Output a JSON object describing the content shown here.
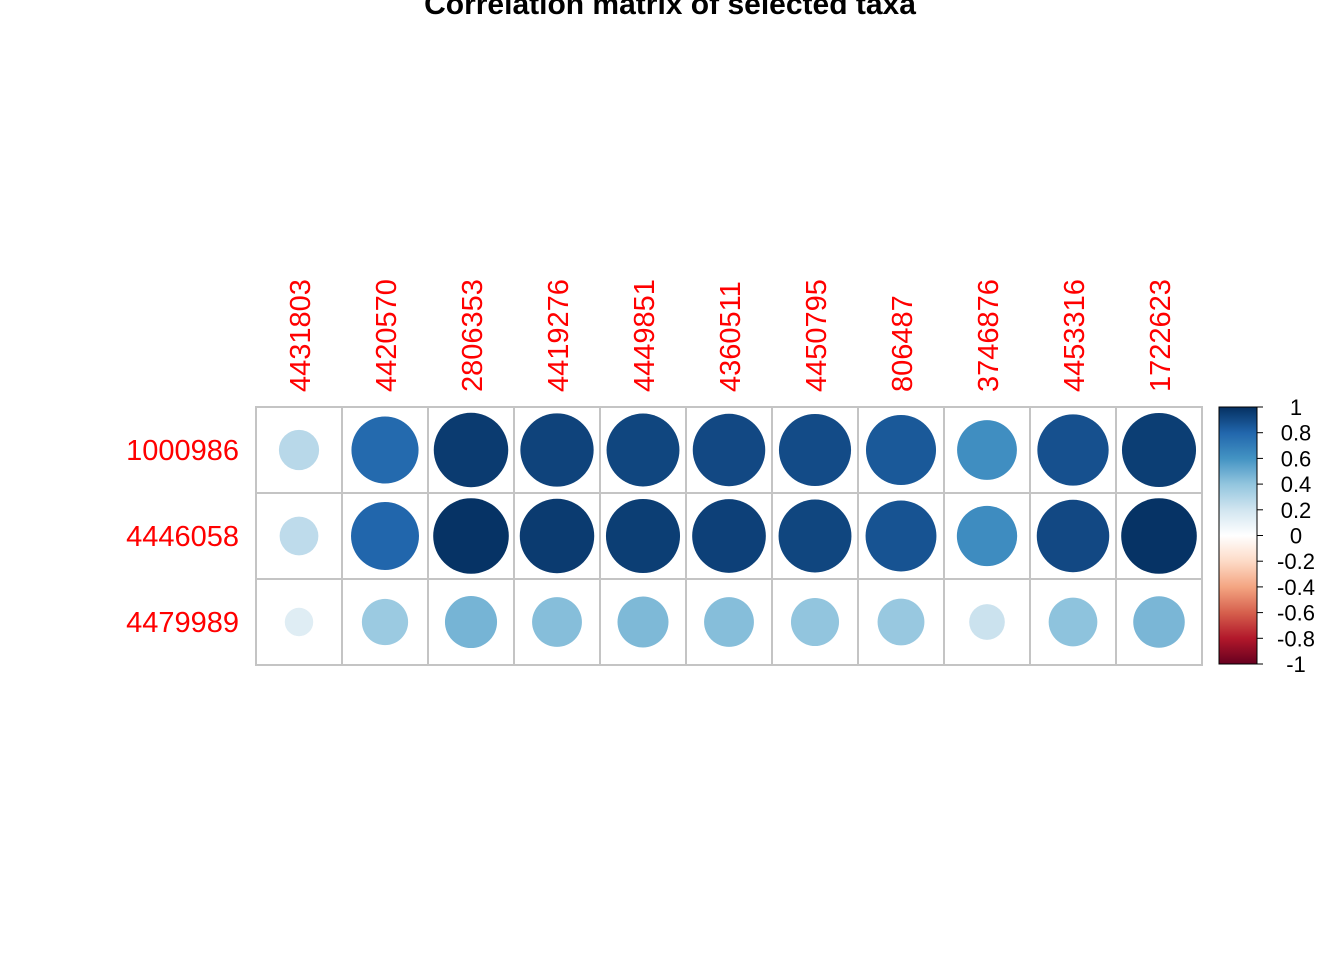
{
  "chart_data": {
    "type": "heatmap",
    "title": "Correlation matrix of selected taxa",
    "rows": [
      "1000986",
      "4446058",
      "4479989"
    ],
    "columns": [
      "4431803",
      "4420570",
      "2806353",
      "4419276",
      "4449851",
      "4360511",
      "4450795",
      "806487",
      "3746876",
      "4453316",
      "1722623"
    ],
    "values": [
      [
        0.28,
        0.78,
        0.96,
        0.93,
        0.92,
        0.91,
        0.9,
        0.85,
        0.62,
        0.88,
        0.95
      ],
      [
        0.26,
        0.8,
        0.99,
        0.96,
        0.95,
        0.94,
        0.92,
        0.87,
        0.63,
        0.91,
        0.99
      ],
      [
        0.14,
        0.37,
        0.47,
        0.43,
        0.45,
        0.43,
        0.4,
        0.38,
        0.22,
        0.41,
        0.46
      ]
    ],
    "colorbar": {
      "range": [
        -1,
        1
      ],
      "ticks": [
        "1",
        "0.8",
        "0.6",
        "0.4",
        "0.2",
        "0",
        "-0.2",
        "-0.4",
        "-0.6",
        "-0.8",
        "-1"
      ],
      "colors": [
        "#67001F",
        "#B2182B",
        "#D6604D",
        "#F4A582",
        "#FDDBC7",
        "#FFFFFF",
        "#D1E5F0",
        "#92C5DE",
        "#4393C3",
        "#2166AC",
        "#053061"
      ],
      "placement": "right"
    },
    "glyph": "circle",
    "grid": true
  }
}
